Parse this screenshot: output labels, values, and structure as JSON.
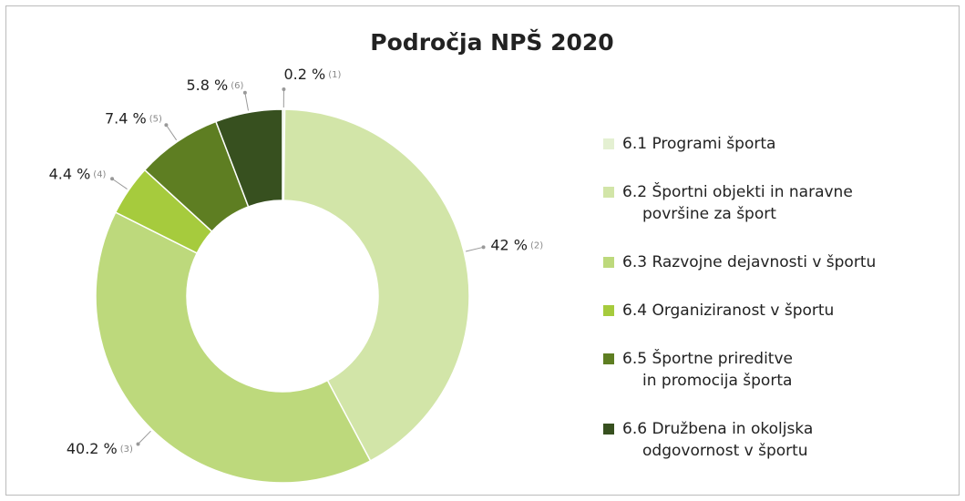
{
  "chart_data": {
    "type": "donut",
    "title": "Področja NPŠ 2020",
    "categories": [
      "6.1 Programi športa",
      "6.2 Športni objekti in naravne\npovršine za šport",
      "6.3 Razvojne dejavnosti v športu",
      "6.4 Organiziranost v športu",
      "6.5 Športne prireditve\nin promocija športa",
      "6.6 Družbena in okoljska\nodgovornost v športu"
    ],
    "values": [
      0.2,
      42,
      40.2,
      4.4,
      7.4,
      5.8
    ],
    "value_labels": [
      "0.2 %",
      "42 %",
      "40.2 %",
      "4.4 %",
      "7.4 %",
      "5.8 %"
    ],
    "label_indices": [
      "(1)",
      "(2)",
      "(3)",
      "(4)",
      "(5)",
      "(6)"
    ],
    "colors": [
      "#e4f0d2",
      "#d2e5a8",
      "#bdd97c",
      "#a6cb3d",
      "#5e7e22",
      "#37501f"
    ],
    "legend": "right"
  }
}
